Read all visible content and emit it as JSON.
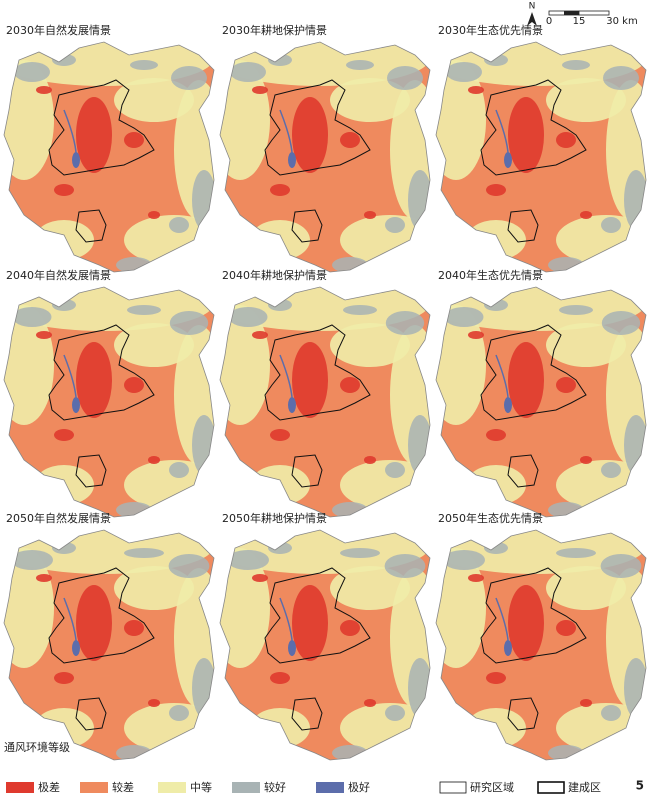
{
  "figure": {
    "panels": [
      {
        "title": "2030年自然发展情景"
      },
      {
        "title": "2030年耕地保护情景"
      },
      {
        "title": "2030年生态优先情景"
      },
      {
        "title": "2040年自然发展情景"
      },
      {
        "title": "2040年耕地保护情景"
      },
      {
        "title": "2040年生态优先情景"
      },
      {
        "title": "2050年自然发展情景"
      },
      {
        "title": "2050年耕地保护情景"
      },
      {
        "title": "2050年生态优先情景"
      }
    ],
    "north": "N",
    "scale_bar": {
      "ticks": [
        "0",
        "15",
        "30 km"
      ]
    },
    "legend": {
      "title": "通风环境等级",
      "items": [
        {
          "label": "极差",
          "color": "#df3a2e"
        },
        {
          "label": "较差",
          "color": "#ef8a5e"
        },
        {
          "label": "中等",
          "color": "#efeca8"
        },
        {
          "label": "较好",
          "color": "#a8b3b4"
        },
        {
          "label": "极好",
          "color": "#5c6dab"
        }
      ],
      "boundaries": [
        {
          "label": "研究区域"
        },
        {
          "label": "建成区"
        }
      ]
    },
    "page_number": "5"
  }
}
